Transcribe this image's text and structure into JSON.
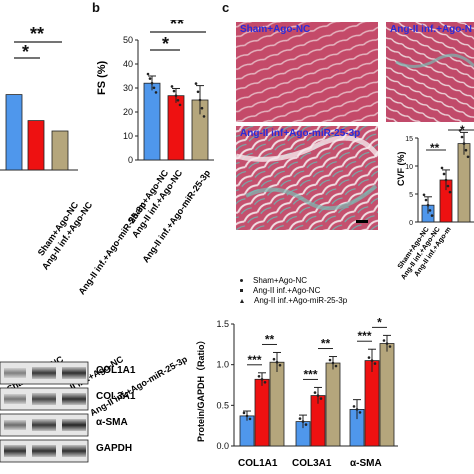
{
  "panels": {
    "b": "b",
    "c": "c"
  },
  "panel_a": {
    "sig": [
      "*",
      "**"
    ]
  },
  "panel_b": {
    "ylabel": "FS (%)",
    "yticks": [
      "0",
      "10",
      "20",
      "30",
      "40",
      "50"
    ],
    "sig": [
      "*",
      "**"
    ]
  },
  "groups_short": [
    "Sham+Ago-NC",
    "Ang-II inf.+Ago-NC",
    "Ang-II inf.+Ago-miR-25-3p"
  ],
  "histology": {
    "sham": "Sham+Ago-NC",
    "angnc": "Ang-II inf.+Ago-N",
    "angmir": "Ang-II inf+Ago-miR-25-3p"
  },
  "cvf": {
    "ylabel": "CVF (%)",
    "yticks": [
      "0",
      "5",
      "10",
      "15"
    ],
    "sig": [
      "**",
      "*"
    ],
    "categories": [
      "Sham+Ago-NC",
      "Ang-II inf.+Ago-NC",
      "Ang-II inf.+Ago-m"
    ]
  },
  "western": {
    "lanes": [
      "Sham+Ago-NC",
      "Ang-II inf.+Ago-NC",
      "Ang-II inf.+Ago-miR-25-3p"
    ],
    "bands": [
      "COL1A1",
      "COL3A1",
      "α-SMA",
      "GAPDH"
    ]
  },
  "quant": {
    "legend": [
      "Sham+Ago-NC",
      "Ang-II inf.+Ago-NC",
      "Ang-II inf.+Ago-miR-25-3p"
    ],
    "ylabel": "Protein/GAPDH（Ratio）",
    "yticks": [
      "0.0",
      "0.5",
      "1.0",
      "1.5"
    ],
    "categories": [
      "COL1A1",
      "COL3A1",
      "α-SMA"
    ],
    "sig": [
      "***",
      "**",
      "***",
      "**",
      "***",
      "*"
    ]
  },
  "colors": {
    "blue": "#4f97ec",
    "red": "#ee1111",
    "tan": "#b5a67c"
  },
  "chart_data": [
    {
      "type": "bar",
      "id": "panel-a",
      "categories": [
        "Sham+Ago-NC",
        "Ang-II inf.+Ago-NC",
        "Ang-II inf.+Ago-miR-25-3p"
      ],
      "values": [
        58,
        38,
        30
      ],
      "ylim": [
        0,
        100
      ]
    },
    {
      "type": "bar",
      "id": "fs",
      "categories": [
        "Sham+Ago-NC",
        "Ang-II inf.+Ago-NC",
        "Ang-II inf.+Ago-miR-25-3p"
      ],
      "values": [
        32,
        26.8,
        25
      ],
      "errors": [
        3,
        3,
        6
      ],
      "ylabel": "FS (%)",
      "ylim": [
        0,
        50
      ]
    },
    {
      "type": "bar",
      "id": "cvf",
      "categories": [
        "Sham+Ago-NC",
        "Ang-II inf.+Ago-NC",
        "Ang-II inf.+Ago-miR-25-3p"
      ],
      "values": [
        3,
        7.5,
        14
      ],
      "errors": [
        1.5,
        1.8,
        2
      ],
      "ylabel": "CVF (%)",
      "ylim": [
        0,
        15
      ]
    },
    {
      "type": "bar",
      "id": "protein",
      "categories": [
        "COL1A1",
        "COL3A1",
        "α-SMA"
      ],
      "series": [
        {
          "name": "Sham+Ago-NC",
          "values": [
            0.37,
            0.3,
            0.45
          ]
        },
        {
          "name": "Ang-II inf.+Ago-NC",
          "values": [
            0.82,
            0.62,
            1.05
          ]
        },
        {
          "name": "Ang-II inf.+Ago-miR-25-3p",
          "values": [
            1.03,
            1.02,
            1.26
          ]
        }
      ],
      "errors": [
        [
          0.06,
          0.08,
          0.12
        ],
        [
          0.08,
          0.1,
          0.08
        ],
        [
          0.12,
          0.14,
          0.1
        ]
      ],
      "ylabel": "Protein/GAPDH（Ratio）",
      "ylim": [
        0,
        1.5
      ]
    }
  ]
}
